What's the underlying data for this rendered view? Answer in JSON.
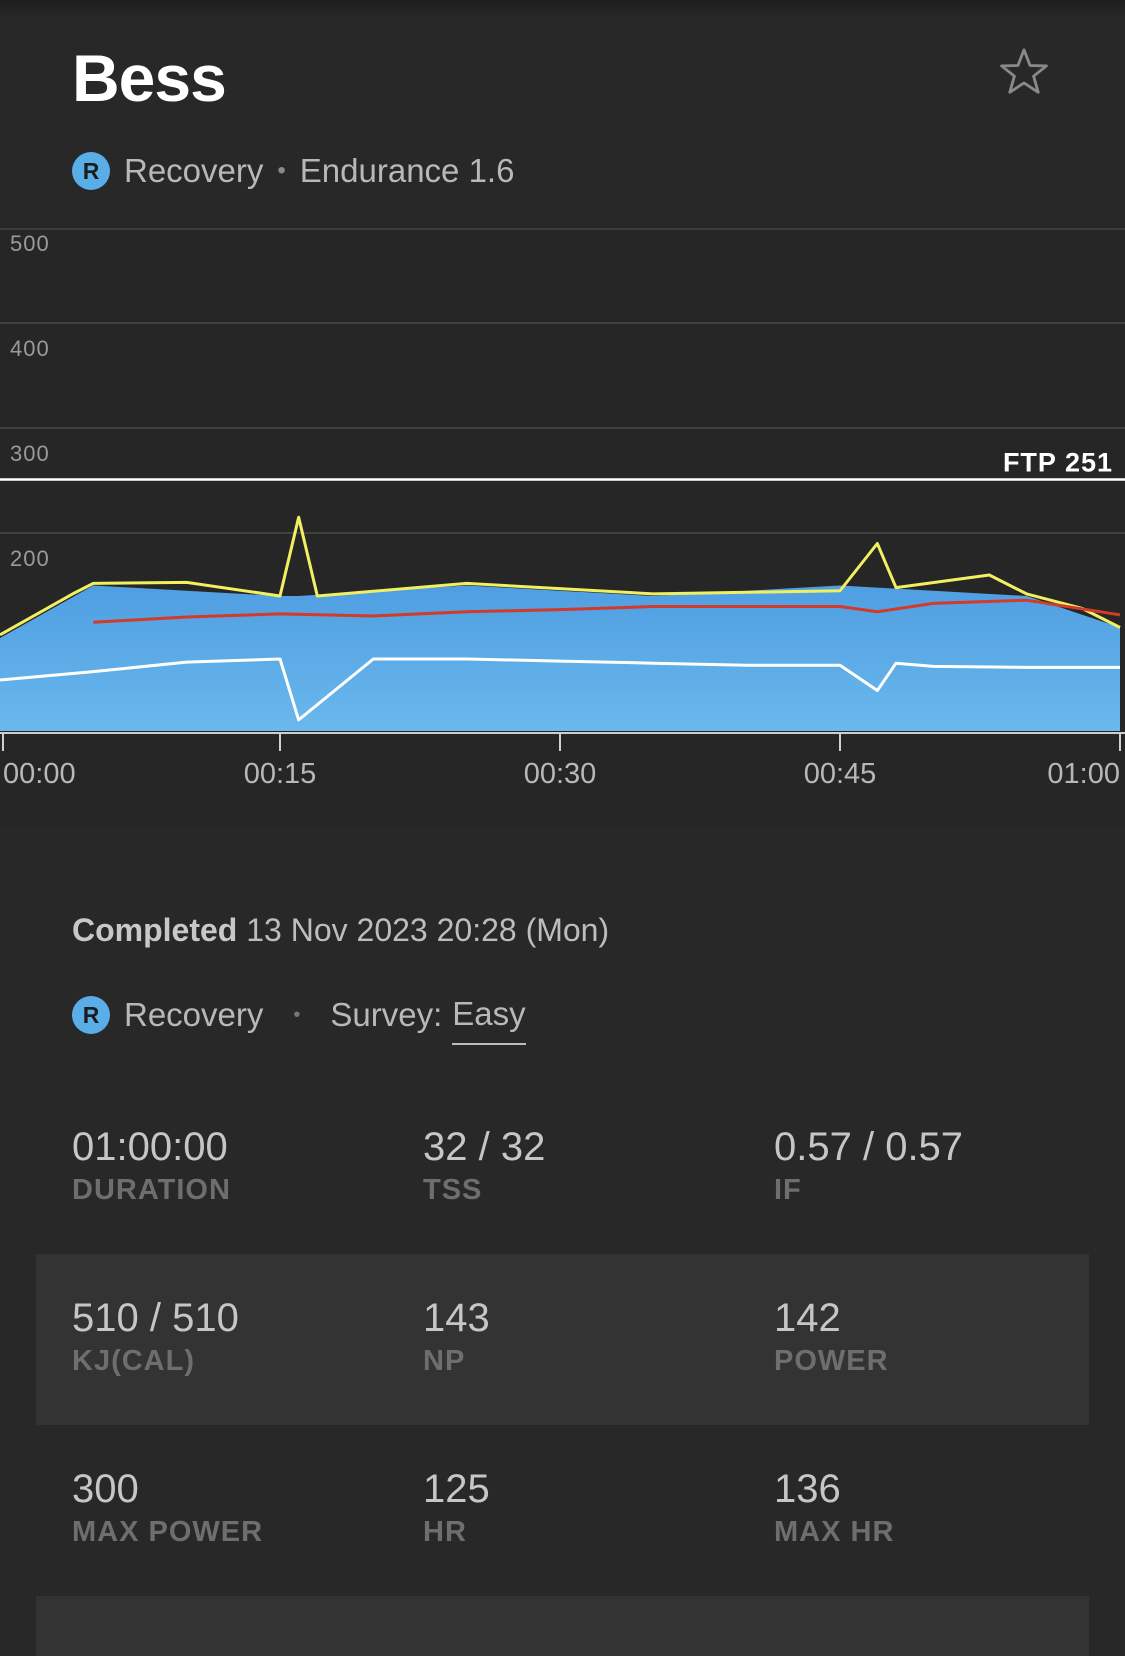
{
  "header": {
    "title": "Bess",
    "zone_badge": "R",
    "zone": "Recovery",
    "separator": "•",
    "workout_type": "Endurance 1.6"
  },
  "chart_data": {
    "type": "area",
    "y_ticks": [
      "500",
      "400",
      "300",
      "200"
    ],
    "x_ticks": [
      "00:00",
      "00:15",
      "00:30",
      "00:45",
      "01:00"
    ],
    "ylim": [
      0,
      500
    ],
    "xlim_minutes": [
      0,
      60
    ],
    "ftp": 251,
    "ftp_label": "FTP 251",
    "grid": true,
    "series": [
      {
        "color": "#5ca9e6",
        "x": [
          0,
          4,
          5,
          15,
          16,
          25,
          35,
          45,
          55,
          60
        ],
        "values": [
          100,
          140,
          150,
          140,
          140,
          150,
          140,
          150,
          140,
          110
        ]
      },
      {
        "color": "#f0f060",
        "x": [
          0,
          4,
          5,
          10,
          15,
          16,
          17,
          25,
          35,
          45,
          47,
          48,
          53,
          55,
          58,
          60
        ],
        "values": [
          103,
          143,
          152,
          153,
          140,
          215,
          140,
          152,
          142,
          145,
          190,
          148,
          160,
          142,
          128,
          110
        ]
      },
      {
        "color": "#d23a2a",
        "x": [
          5,
          10,
          15,
          20,
          25,
          30,
          35,
          40,
          45,
          47,
          50,
          55,
          60
        ],
        "values": [
          115,
          120,
          123,
          121,
          125,
          127,
          130,
          130,
          130,
          125,
          133,
          136,
          122
        ]
      },
      {
        "color": "#ffffff",
        "x": [
          0,
          5,
          10,
          15,
          16,
          20,
          25,
          30,
          35,
          40,
          45,
          47,
          48,
          50,
          55,
          60
        ],
        "values": [
          60,
          68,
          77,
          80,
          22,
          80,
          80,
          78,
          76,
          74,
          74,
          50,
          76,
          73,
          72,
          72
        ]
      }
    ]
  },
  "details": {
    "completed_label": "Completed",
    "completed_value": "13 Nov 2023 20:28 (Mon)",
    "zone_badge": "R",
    "zone": "Recovery",
    "separator": "•",
    "survey_label": "Survey:",
    "survey_value": "Easy"
  },
  "stats": [
    [
      {
        "value": "01:00:00",
        "label": "DURATION"
      },
      {
        "value": "32 / 32",
        "label": "TSS"
      },
      {
        "value": "0.57 / 0.57",
        "label": "IF"
      }
    ],
    [
      {
        "value": "510 / 510",
        "label": "KJ(CAL)"
      },
      {
        "value": "143",
        "label": "NP"
      },
      {
        "value": "142",
        "label": "POWER"
      }
    ],
    [
      {
        "value": "300",
        "label": "MAX POWER"
      },
      {
        "value": "125",
        "label": "HR"
      },
      {
        "value": "136",
        "label": "MAX HR"
      }
    ]
  ],
  "colors": {
    "background": "#282828",
    "accent": "#5aaee8"
  },
  "icons": {
    "favorite": "star-outline-icon"
  }
}
